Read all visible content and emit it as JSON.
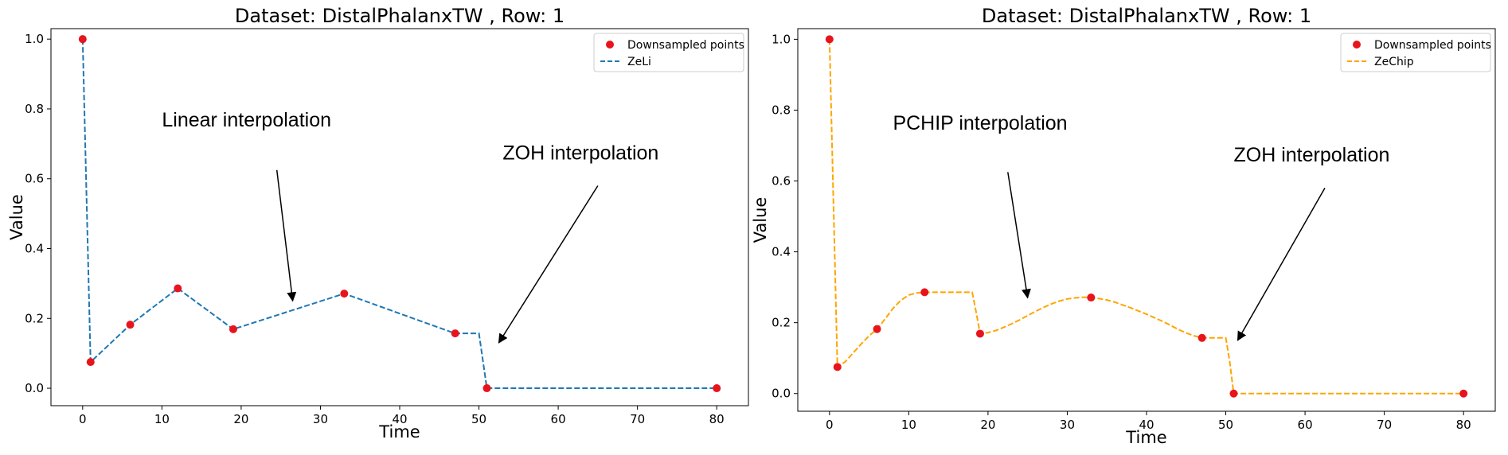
{
  "chart_data": [
    {
      "type": "line",
      "title": "Dataset: DistalPhalanxTW , Row: 1",
      "xlabel": "Time",
      "ylabel": "Value",
      "xlim": [
        -4,
        84
      ],
      "ylim": [
        -0.05,
        1.03
      ],
      "xticks": [
        0,
        10,
        20,
        30,
        40,
        50,
        60,
        70,
        80
      ],
      "yticks": [
        0.0,
        0.2,
        0.4,
        0.6,
        0.8,
        1.0
      ],
      "xtick_labels": [
        "0",
        "10",
        "20",
        "30",
        "40",
        "50",
        "60",
        "70",
        "80"
      ],
      "ytick_labels": [
        "0.0",
        "0.2",
        "0.4",
        "0.6",
        "0.8",
        "1.0"
      ],
      "legend_position": "top-right",
      "points": {
        "name": "Downsampled points",
        "color": "#e8141c",
        "x": [
          0,
          1,
          6,
          12,
          19,
          33,
          47,
          51,
          80
        ],
        "y": [
          1.0,
          0.075,
          0.182,
          0.286,
          0.169,
          0.271,
          0.157,
          0.0,
          0.0
        ]
      },
      "series": [
        {
          "name": "ZeLi",
          "color": "#1f77b4",
          "style": "dashed",
          "x": [
            0,
            1,
            6,
            12,
            19,
            33,
            47,
            50,
            51,
            80
          ],
          "y": [
            1.0,
            0.075,
            0.182,
            0.286,
            0.169,
            0.271,
            0.157,
            0.157,
            0.0,
            0.0
          ]
        }
      ],
      "annotations": [
        {
          "text": "Linear interpolation",
          "text_x": 10,
          "text_y": 0.75,
          "arrow_from": [
            24.5,
            0.625
          ],
          "arrow_to": [
            26.5,
            0.25
          ]
        },
        {
          "text": "ZOH interpolation",
          "text_x": 53,
          "text_y": 0.655,
          "arrow_from": [
            65,
            0.58
          ],
          "arrow_to": [
            52.5,
            0.13
          ]
        }
      ]
    },
    {
      "type": "line",
      "title": "Dataset: DistalPhalanxTW , Row: 1",
      "xlabel": "Time",
      "ylabel": "Value",
      "xlim": [
        -4,
        84
      ],
      "ylim": [
        -0.05,
        1.03
      ],
      "xticks": [
        0,
        10,
        20,
        30,
        40,
        50,
        60,
        70,
        80
      ],
      "yticks": [
        0.0,
        0.2,
        0.4,
        0.6,
        0.8,
        1.0
      ],
      "xtick_labels": [
        "0",
        "10",
        "20",
        "30",
        "40",
        "50",
        "60",
        "70",
        "80"
      ],
      "ytick_labels": [
        "0.0",
        "0.2",
        "0.4",
        "0.6",
        "0.8",
        "1.0"
      ],
      "legend_position": "top-right",
      "points": {
        "name": "Downsampled points",
        "color": "#e8141c",
        "x": [
          0,
          1,
          6,
          12,
          19,
          33,
          47,
          51,
          80
        ],
        "y": [
          1.0,
          0.075,
          0.182,
          0.286,
          0.169,
          0.271,
          0.157,
          0.0,
          0.0
        ]
      },
      "series": [
        {
          "name": "ZeChip",
          "color": "#ffa500",
          "style": "dashed",
          "x": [
            0,
            1,
            2,
            3,
            4,
            5,
            6,
            7,
            8,
            9,
            10,
            11,
            12,
            13,
            14,
            15,
            16,
            17,
            18,
            18.5,
            19,
            20,
            21,
            22,
            23,
            24,
            25,
            26,
            27,
            28,
            29,
            30,
            31,
            32,
            33,
            34,
            35,
            36,
            37,
            38,
            39,
            40,
            41,
            42,
            43,
            44,
            45,
            46,
            47,
            48,
            49,
            50,
            50.5,
            51,
            80
          ],
          "y": [
            1.0,
            0.075,
            0.09,
            0.115,
            0.14,
            0.163,
            0.182,
            0.21,
            0.24,
            0.263,
            0.278,
            0.284,
            0.286,
            0.286,
            0.286,
            0.286,
            0.286,
            0.286,
            0.286,
            0.23,
            0.169,
            0.172,
            0.178,
            0.187,
            0.197,
            0.208,
            0.22,
            0.232,
            0.243,
            0.253,
            0.261,
            0.267,
            0.27,
            0.272,
            0.271,
            0.268,
            0.264,
            0.258,
            0.25,
            0.242,
            0.233,
            0.224,
            0.214,
            0.204,
            0.193,
            0.181,
            0.171,
            0.163,
            0.157,
            0.157,
            0.157,
            0.157,
            0.09,
            0.0,
            0.0
          ]
        }
      ],
      "annotations": [
        {
          "text": "PCHIP interpolation",
          "text_x": 8,
          "text_y": 0.745,
          "arrow_from": [
            22.5,
            0.625
          ],
          "arrow_to": [
            25,
            0.27
          ]
        },
        {
          "text": "ZOH interpolation",
          "text_x": 51,
          "text_y": 0.655,
          "arrow_from": [
            62.5,
            0.58
          ],
          "arrow_to": [
            51.5,
            0.15
          ]
        }
      ]
    }
  ]
}
